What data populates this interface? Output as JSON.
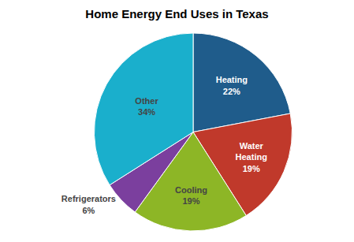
{
  "chart_data": {
    "type": "pie",
    "title": "Home Energy End Uses in Texas",
    "categories": [
      "Heating\n22%",
      "Water\nHeating\n19%",
      "Cooling\n19%",
      "Refrigerators\n6%",
      "Other\n34%"
    ],
    "values": [
      22,
      19,
      19,
      6,
      34
    ],
    "colors": [
      "#1f5c8b",
      "#c0392b",
      "#8db626",
      "#7b3f9e",
      "#1aafcc"
    ]
  }
}
